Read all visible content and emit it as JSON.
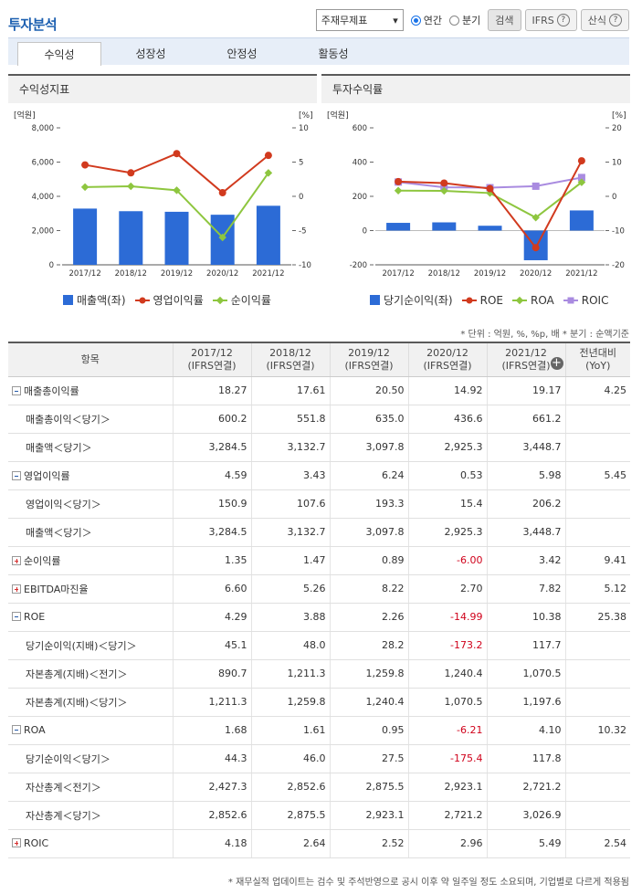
{
  "title": "투자분석",
  "controls": {
    "statement_select": "주재무제표",
    "radio_annual": "연간",
    "radio_quarter": "분기",
    "search_button": "검색",
    "ifrs_button": "IFRS",
    "formula_button": "산식"
  },
  "tabs": [
    "수익성",
    "성장성",
    "안정성",
    "활동성"
  ],
  "colors": {
    "bar": "#2c6bd6",
    "red": "#d13a1e",
    "green": "#8ec63f",
    "purple": "#a98be0"
  },
  "chart_data": [
    {
      "panel_title": "수익성지표",
      "type": "bar+line",
      "left_unit": "[억원]",
      "right_unit": "[%]",
      "categories": [
        "2017/12",
        "2018/12",
        "2019/12",
        "2020/12",
        "2021/12"
      ],
      "left_ylim": [
        0,
        8000
      ],
      "left_ticks": [
        "8,000",
        "6,000",
        "4,000",
        "2,000",
        "0"
      ],
      "right_ylim": [
        -10,
        10
      ],
      "right_ticks": [
        "10",
        "5",
        "0",
        "-5",
        "-10"
      ],
      "bars": {
        "name": "매출액(좌)",
        "values": [
          3284.5,
          3132.7,
          3097.8,
          2925.3,
          3448.7
        ]
      },
      "lines": [
        {
          "name": "영업이익률",
          "values": [
            4.59,
            3.43,
            6.24,
            0.53,
            5.98
          ]
        },
        {
          "name": "순이익률",
          "values": [
            1.35,
            1.47,
            0.89,
            -6.0,
            3.42
          ]
        }
      ]
    },
    {
      "panel_title": "투자수익률",
      "type": "bar+line",
      "left_unit": "[억원]",
      "right_unit": "[%]",
      "categories": [
        "2017/12",
        "2018/12",
        "2019/12",
        "2020/12",
        "2021/12"
      ],
      "left_ylim": [
        -200,
        600
      ],
      "left_ticks": [
        "600",
        "400",
        "200",
        "0",
        "-200"
      ],
      "right_ylim": [
        -20,
        20
      ],
      "right_ticks": [
        "20",
        "10",
        "0",
        "-10",
        "-20"
      ],
      "bars": {
        "name": "당기순이익(좌)",
        "values": [
          45.1,
          48.0,
          28.2,
          -173.2,
          117.7
        ]
      },
      "lines": [
        {
          "name": "ROE",
          "values": [
            4.29,
            3.88,
            2.26,
            -14.99,
            10.38
          ]
        },
        {
          "name": "ROA",
          "values": [
            1.68,
            1.61,
            0.95,
            -6.21,
            4.1
          ]
        },
        {
          "name": "ROIC",
          "values": [
            4.18,
            2.64,
            2.52,
            2.96,
            5.49
          ]
        }
      ]
    }
  ],
  "unit_note": "* 단위 : 억원, %, %p, 배   * 분기 : 순액기준",
  "table": {
    "headers": [
      {
        "l1": "항목",
        "l2": ""
      },
      {
        "l1": "2017/12",
        "l2": "(IFRS연결)"
      },
      {
        "l1": "2018/12",
        "l2": "(IFRS연결)"
      },
      {
        "l1": "2019/12",
        "l2": "(IFRS연결)"
      },
      {
        "l1": "2020/12",
        "l2": "(IFRS연결)"
      },
      {
        "l1": "2021/12",
        "l2": "(IFRS연결)"
      },
      {
        "l1": "전년대비",
        "l2": "(YoY)"
      }
    ],
    "rows": [
      {
        "label": "매출총이익률",
        "level": "main",
        "toggle": "minus",
        "values": [
          "18.27",
          "17.61",
          "20.50",
          "14.92",
          "19.17",
          "4.25"
        ]
      },
      {
        "label": "매출총이익＜당기＞",
        "level": "sub",
        "toggle": "",
        "values": [
          "600.2",
          "551.8",
          "635.0",
          "436.6",
          "661.2",
          ""
        ]
      },
      {
        "label": "매출액＜당기＞",
        "level": "sub",
        "toggle": "",
        "values": [
          "3,284.5",
          "3,132.7",
          "3,097.8",
          "2,925.3",
          "3,448.7",
          ""
        ]
      },
      {
        "label": "영업이익률",
        "level": "main",
        "toggle": "minus",
        "values": [
          "4.59",
          "3.43",
          "6.24",
          "0.53",
          "5.98",
          "5.45"
        ]
      },
      {
        "label": "영업이익＜당기＞",
        "level": "sub",
        "toggle": "",
        "values": [
          "150.9",
          "107.6",
          "193.3",
          "15.4",
          "206.2",
          ""
        ]
      },
      {
        "label": "매출액＜당기＞",
        "level": "sub",
        "toggle": "",
        "values": [
          "3,284.5",
          "3,132.7",
          "3,097.8",
          "2,925.3",
          "3,448.7",
          ""
        ]
      },
      {
        "label": "순이익률",
        "level": "main",
        "toggle": "plus",
        "values": [
          "1.35",
          "1.47",
          "0.89",
          "-6.00",
          "3.42",
          "9.41"
        ]
      },
      {
        "label": "EBITDA마진율",
        "level": "main",
        "toggle": "plus",
        "values": [
          "6.60",
          "5.26",
          "8.22",
          "2.70",
          "7.82",
          "5.12"
        ]
      },
      {
        "label": "ROE",
        "level": "main",
        "toggle": "minus",
        "values": [
          "4.29",
          "3.88",
          "2.26",
          "-14.99",
          "10.38",
          "25.38"
        ]
      },
      {
        "label": "당기순이익(지배)＜당기＞",
        "level": "sub",
        "toggle": "",
        "values": [
          "45.1",
          "48.0",
          "28.2",
          "-173.2",
          "117.7",
          ""
        ]
      },
      {
        "label": "자본총계(지배)＜전기＞",
        "level": "sub",
        "toggle": "",
        "values": [
          "890.7",
          "1,211.3",
          "1,259.8",
          "1,240.4",
          "1,070.5",
          ""
        ]
      },
      {
        "label": "자본총계(지배)＜당기＞",
        "level": "sub",
        "toggle": "",
        "values": [
          "1,211.3",
          "1,259.8",
          "1,240.4",
          "1,070.5",
          "1,197.6",
          ""
        ]
      },
      {
        "label": "ROA",
        "level": "main",
        "toggle": "minus",
        "values": [
          "1.68",
          "1.61",
          "0.95",
          "-6.21",
          "4.10",
          "10.32"
        ]
      },
      {
        "label": "당기순이익＜당기＞",
        "level": "sub",
        "toggle": "",
        "values": [
          "44.3",
          "46.0",
          "27.5",
          "-175.4",
          "117.8",
          ""
        ]
      },
      {
        "label": "자산총계＜전기＞",
        "level": "sub",
        "toggle": "",
        "values": [
          "2,427.3",
          "2,852.6",
          "2,875.5",
          "2,923.1",
          "2,721.2",
          ""
        ]
      },
      {
        "label": "자산총계＜당기＞",
        "level": "sub",
        "toggle": "",
        "values": [
          "2,852.6",
          "2,875.5",
          "2,923.1",
          "2,721.2",
          "3,026.9",
          ""
        ]
      },
      {
        "label": "ROIC",
        "level": "main",
        "toggle": "plus",
        "values": [
          "4.18",
          "2.64",
          "2.52",
          "2.96",
          "5.49",
          "2.54"
        ]
      }
    ]
  },
  "footnote": "* 재무실적 업데이트는 검수 및 주석반영으로 공시 이후 약 일주일 정도 소요되며, 기업별로 다르게 적용됨"
}
